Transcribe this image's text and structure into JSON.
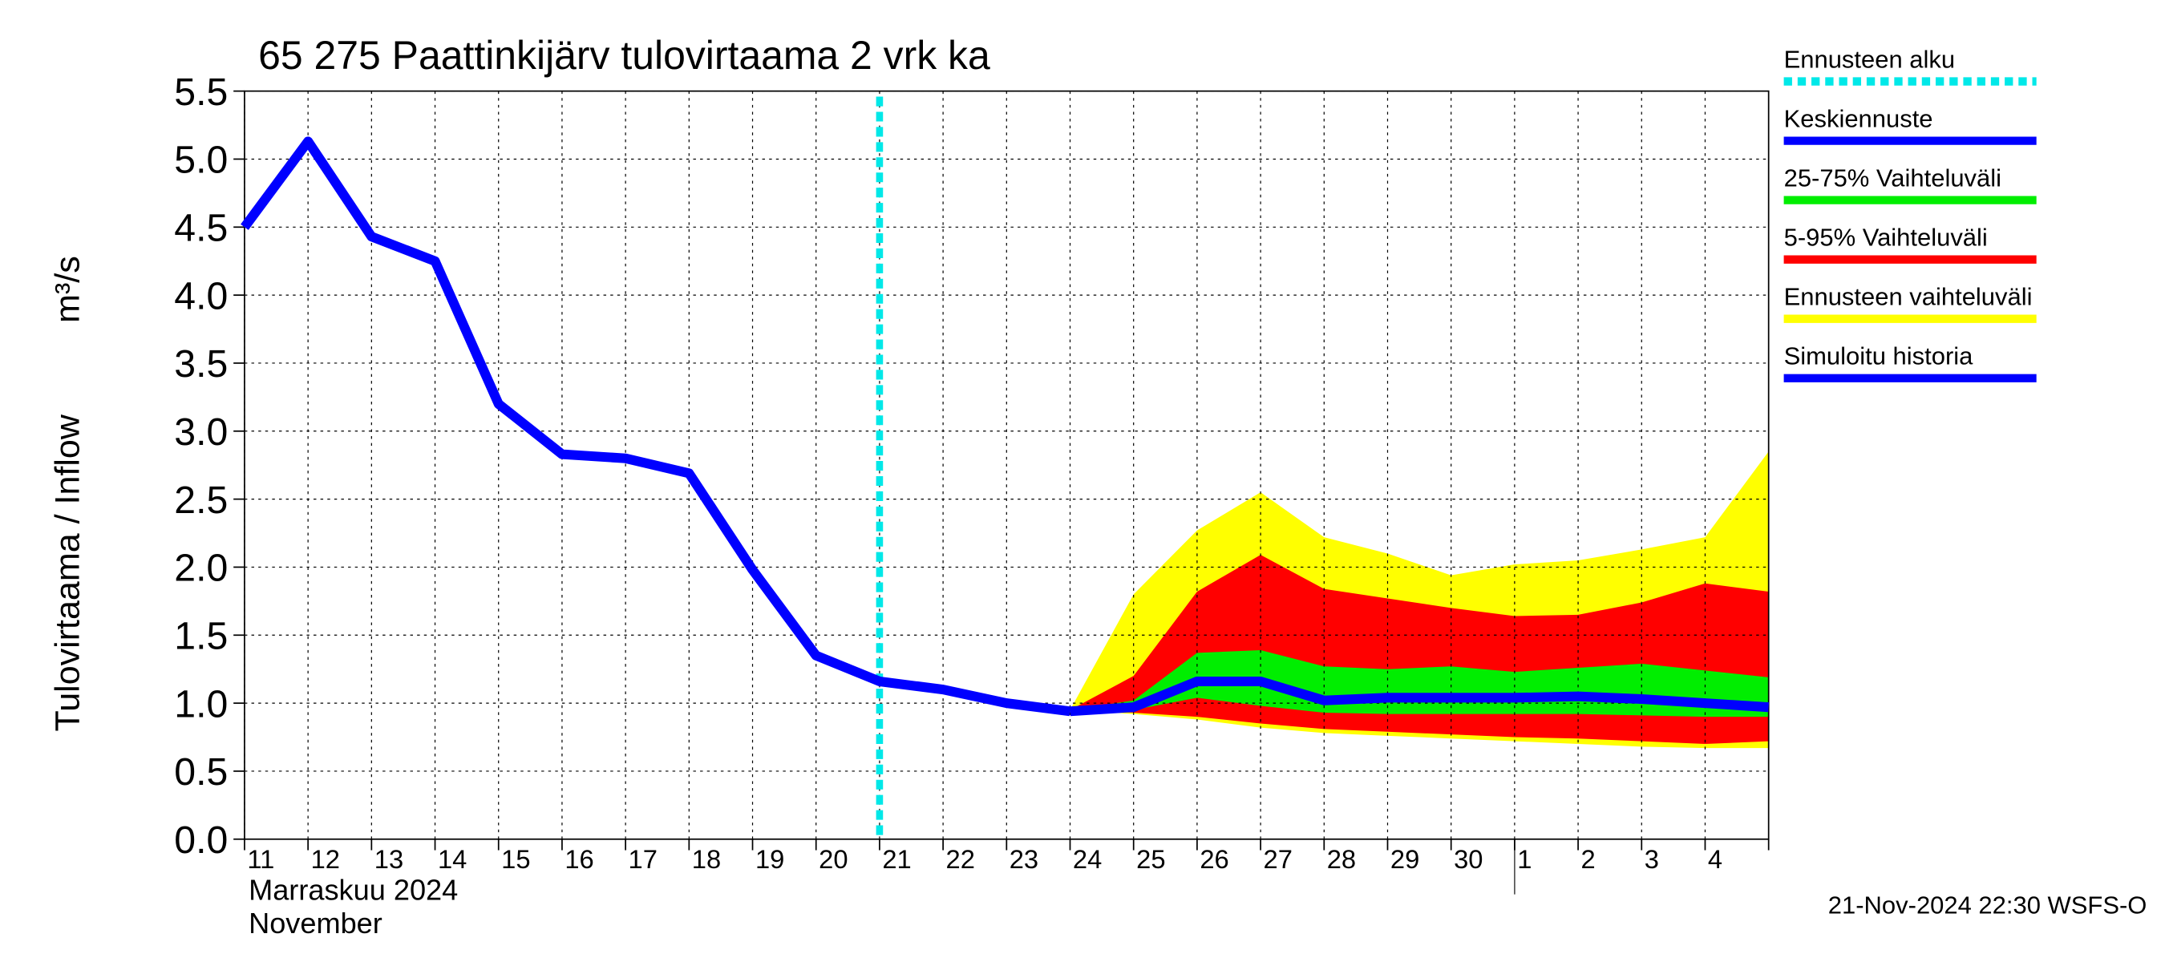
{
  "chart_data": {
    "type": "band-forecast",
    "title": "65 275 Paattinkijärv tulovirtaama 2 vrk ka",
    "y_label": "Tulovirtaama / Inflow",
    "y_unit": "m³/s",
    "x_label": "Marraskuu 2024",
    "x_label_en": "November",
    "footer": "21-Nov-2024 22:30 WSFS-O",
    "categories": [
      "11",
      "12",
      "13",
      "14",
      "15",
      "16",
      "17",
      "18",
      "19",
      "20",
      "21",
      "22",
      "23",
      "24",
      "25",
      "26",
      "27",
      "28",
      "29",
      "30",
      "1",
      "2",
      "3",
      "4",
      null
    ],
    "ylim": [
      0,
      5.5
    ],
    "yticks": [
      {
        "value": 0,
        "label": "0.0"
      },
      0.5,
      {
        "value": 1,
        "label": "1.0"
      },
      1.5,
      {
        "value": 2,
        "label": "2.0"
      },
      2.5,
      {
        "value": 3,
        "label": "3.0"
      },
      3.5,
      {
        "value": 4,
        "label": "4.0"
      },
      4.5,
      {
        "value": 5,
        "label": "5.0"
      },
      5.5
    ],
    "grid": true,
    "forecast_start": {
      "name": "Ennusteen alku",
      "color": "#00e8e8",
      "at": "21"
    },
    "bands": [
      {
        "name": "Ennusteen vaihteluväli",
        "color": "#ffff00",
        "low": [
          null,
          null,
          null,
          null,
          null,
          null,
          null,
          null,
          null,
          null,
          null,
          null,
          null,
          0.95,
          0.92,
          0.88,
          0.82,
          0.78,
          0.76,
          0.74,
          0.72,
          0.7,
          0.68,
          0.67,
          0.67
        ],
        "high": [
          null,
          null,
          null,
          null,
          null,
          null,
          null,
          null,
          null,
          null,
          null,
          null,
          null,
          0.95,
          1.8,
          2.27,
          2.55,
          2.22,
          2.1,
          1.94,
          2.02,
          2.05,
          2.13,
          2.22,
          2.85
        ]
      },
      {
        "name": "5-95% Vaihteluväli",
        "color": "#ff0000",
        "low": [
          null,
          null,
          null,
          null,
          null,
          null,
          null,
          null,
          null,
          null,
          null,
          null,
          null,
          0.95,
          0.93,
          0.9,
          0.85,
          0.81,
          0.79,
          0.77,
          0.75,
          0.74,
          0.72,
          0.7,
          0.72
        ],
        "high": [
          null,
          null,
          null,
          null,
          null,
          null,
          null,
          null,
          null,
          null,
          null,
          null,
          null,
          0.95,
          1.2,
          1.82,
          2.09,
          1.84,
          1.77,
          1.7,
          1.64,
          1.65,
          1.74,
          1.88,
          1.82
        ]
      },
      {
        "name": "25-75% Vaihteluväli",
        "color": "#00ee00",
        "low": [
          null,
          null,
          null,
          null,
          null,
          null,
          null,
          null,
          null,
          null,
          null,
          null,
          null,
          0.95,
          0.95,
          1.04,
          0.98,
          0.93,
          0.92,
          0.92,
          0.92,
          0.92,
          0.91,
          0.9,
          0.9
        ],
        "high": [
          null,
          null,
          null,
          null,
          null,
          null,
          null,
          null,
          null,
          null,
          null,
          null,
          null,
          0.95,
          1.02,
          1.37,
          1.39,
          1.27,
          1.25,
          1.27,
          1.23,
          1.26,
          1.29,
          1.24,
          1.19
        ]
      }
    ],
    "series": [
      {
        "name": "Keskiennuste",
        "color": "#0000ff",
        "values": [
          null,
          null,
          null,
          null,
          null,
          null,
          null,
          null,
          null,
          null,
          null,
          null,
          null,
          0.94,
          0.97,
          1.16,
          1.16,
          1.02,
          1.04,
          1.04,
          1.04,
          1.05,
          1.03,
          1.0,
          0.97
        ]
      },
      {
        "name": "Simuloitu historia",
        "color": "#0000ff",
        "values": [
          4.5,
          5.13,
          4.43,
          4.25,
          3.2,
          2.83,
          2.8,
          2.69,
          1.98,
          1.35,
          1.16,
          1.1,
          1.0,
          0.94,
          null,
          null,
          null,
          null,
          null,
          null,
          null,
          null,
          null,
          null,
          null
        ]
      }
    ]
  }
}
